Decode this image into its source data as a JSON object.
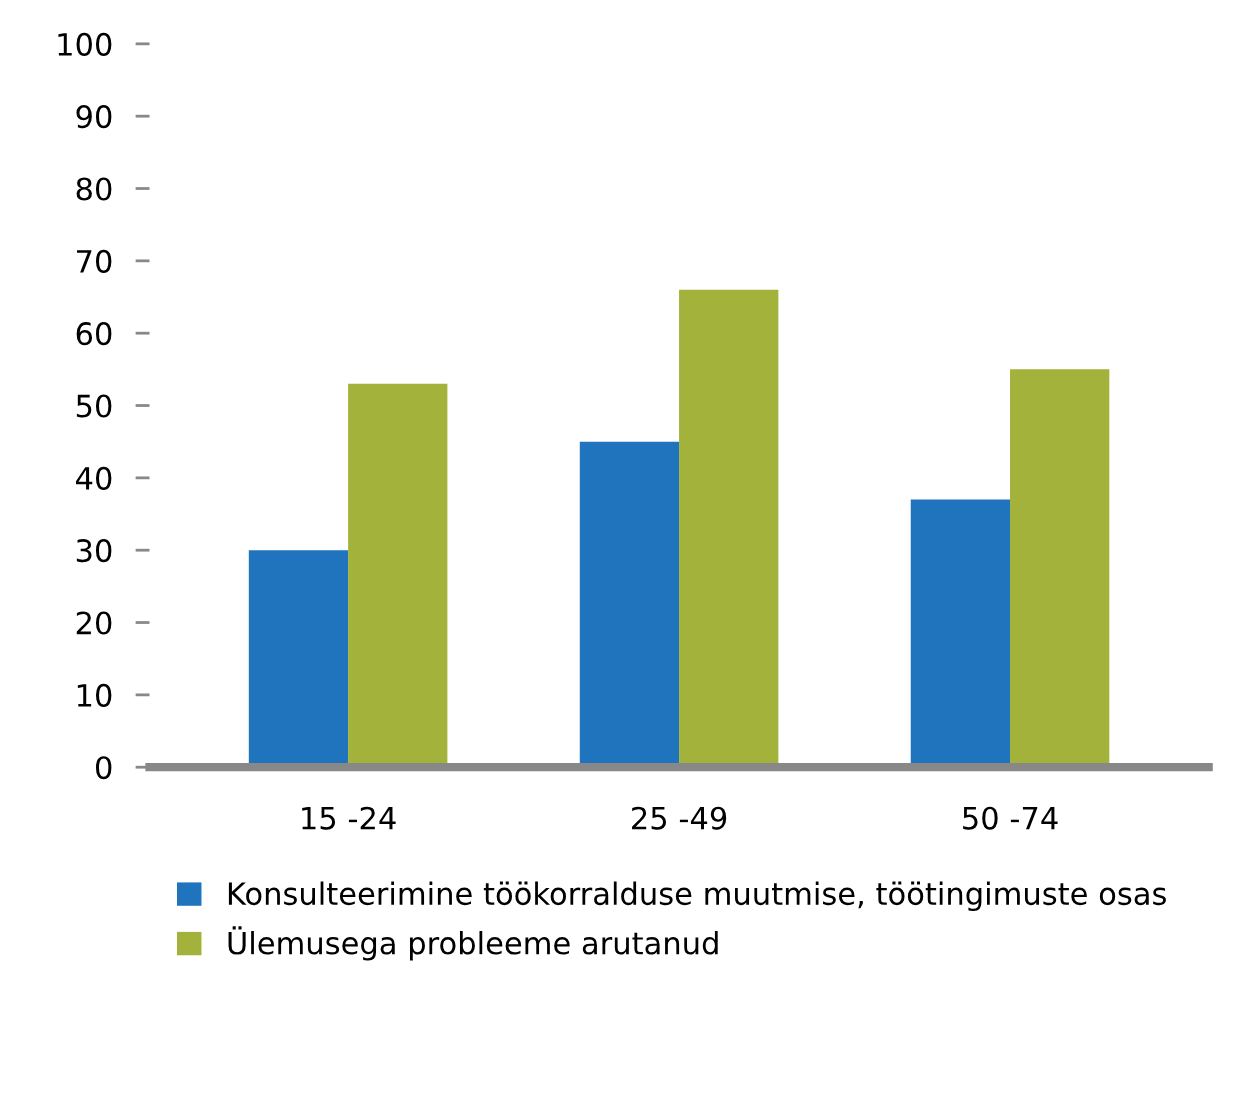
{
  "chart_data": {
    "type": "bar",
    "categories": [
      "15 -24",
      "25 -49",
      "50 -74"
    ],
    "series": [
      {
        "name": "Konsulteerimine töökorralduse muutmise, töötingimuste osas",
        "color": "#1f74bd",
        "values": [
          30,
          45,
          37
        ]
      },
      {
        "name": "Ülemusega probleeme arutanud",
        "color": "#a2b23a",
        "values": [
          53,
          66,
          55
        ]
      }
    ],
    "ylim": [
      0,
      100
    ],
    "yticks": [
      0,
      10,
      20,
      30,
      40,
      50,
      60,
      70,
      80,
      90,
      100
    ],
    "grid": false,
    "legend": "bottom"
  }
}
